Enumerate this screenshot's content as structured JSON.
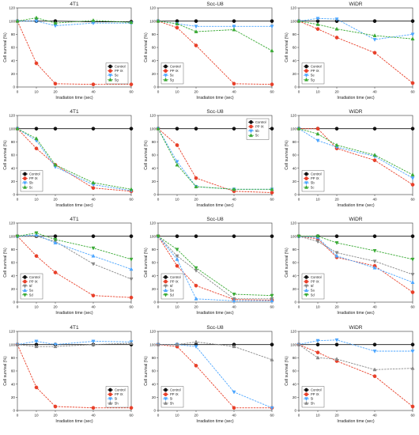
{
  "chart_data": [
    {
      "type": "line",
      "title": "4T1",
      "xlabel": "",
      "ylabel": "Cell survival (%)",
      "x": [
        0,
        10,
        20,
        40,
        60
      ],
      "ylim": [
        0,
        120
      ],
      "xlim": [
        0,
        60
      ],
      "legend_position": "bottom-right",
      "series": [
        {
          "name": "Control",
          "color": "#111111",
          "values": [
            100,
            100,
            100,
            99,
            99
          ]
        },
        {
          "name": "PP IX",
          "color": "#e8402a",
          "values": [
            100,
            36,
            5,
            4,
            4
          ]
        },
        {
          "name": "5e",
          "color": "#4da6ff",
          "values": [
            100,
            100,
            93,
            97,
            97
          ]
        },
        {
          "name": "5g",
          "color": "#3aaa35",
          "values": [
            100,
            105,
            97,
            101,
            98
          ]
        }
      ]
    },
    {
      "type": "line",
      "title": "Scc-U8",
      "xlabel": "",
      "ylabel": "Cell survival (%)",
      "x": [
        0,
        10,
        20,
        40,
        60
      ],
      "ylim": [
        0,
        120
      ],
      "xlim": [
        0,
        60
      ],
      "legend_position": "bottom-left",
      "series": [
        {
          "name": "Control",
          "color": "#111111",
          "values": [
            100,
            100,
            100,
            100,
            100
          ]
        },
        {
          "name": "PP IX",
          "color": "#e8402a",
          "values": [
            100,
            90,
            63,
            5,
            4
          ]
        },
        {
          "name": "5e",
          "color": "#4da6ff",
          "values": [
            100,
            96,
            92,
            92,
            92
          ]
        },
        {
          "name": "5g",
          "color": "#3aaa35",
          "values": [
            100,
            96,
            84,
            87,
            55
          ]
        }
      ]
    },
    {
      "type": "line",
      "title": "WiDR",
      "xlabel": "",
      "ylabel": "Cell survival (%)",
      "x": [
        0,
        10,
        20,
        40,
        60
      ],
      "ylim": [
        0,
        120
      ],
      "xlim": [
        0,
        60
      ],
      "legend_position": "bottom-left",
      "series": [
        {
          "name": "Control",
          "color": "#111111",
          "values": [
            100,
            100,
            100,
            100,
            100
          ]
        },
        {
          "name": "PP IX",
          "color": "#e8402a",
          "values": [
            100,
            88,
            75,
            52,
            6
          ]
        },
        {
          "name": "5e",
          "color": "#4da6ff",
          "values": [
            100,
            104,
            103,
            72,
            80
          ]
        },
        {
          "name": "5g",
          "color": "#3aaa35",
          "values": [
            100,
            95,
            88,
            78,
            73
          ]
        }
      ]
    },
    {
      "type": "line",
      "title": "4T1",
      "xlabel": "",
      "ylabel": "Cell survival (%)",
      "x": [
        0,
        10,
        20,
        40,
        60
      ],
      "ylim": [
        0,
        120
      ],
      "xlim": [
        0,
        60
      ],
      "legend_position": "bottom-left",
      "series": [
        {
          "name": "Control",
          "color": "#111111",
          "values": [
            100,
            100,
            100,
            100,
            100
          ]
        },
        {
          "name": "PP IX",
          "color": "#e8402a",
          "values": [
            100,
            70,
            45,
            10,
            5
          ]
        },
        {
          "name": "5b",
          "color": "#4da6ff",
          "values": [
            100,
            82,
            42,
            15,
            6
          ]
        },
        {
          "name": "5c",
          "color": "#3aaa35",
          "values": [
            100,
            85,
            45,
            18,
            8
          ]
        }
      ]
    },
    {
      "type": "line",
      "title": "Scc-U8",
      "xlabel": "",
      "ylabel": "Cell survival (%)",
      "x": [
        0,
        10,
        20,
        40,
        60
      ],
      "ylim": [
        0,
        120
      ],
      "xlim": [
        0,
        60
      ],
      "legend_position": "top-right",
      "series": [
        {
          "name": "Control",
          "color": "#111111",
          "values": [
            100,
            100,
            100,
            100,
            100
          ]
        },
        {
          "name": "PP IX",
          "color": "#e8402a",
          "values": [
            100,
            75,
            25,
            5,
            3
          ]
        },
        {
          "name": "5b",
          "color": "#4da6ff",
          "values": [
            100,
            50,
            12,
            8,
            8
          ]
        },
        {
          "name": "5c",
          "color": "#3aaa35",
          "values": [
            100,
            45,
            12,
            8,
            8
          ]
        }
      ]
    },
    {
      "type": "line",
      "title": "WiDR",
      "xlabel": "",
      "ylabel": "Cell survival (%)",
      "x": [
        0,
        10,
        20,
        40,
        60
      ],
      "ylim": [
        0,
        120
      ],
      "xlim": [
        0,
        60
      ],
      "legend_position": "bottom-left",
      "series": [
        {
          "name": "Control",
          "color": "#111111",
          "values": [
            100,
            100,
            100,
            100,
            100
          ]
        },
        {
          "name": "PP IX",
          "color": "#e8402a",
          "values": [
            100,
            100,
            70,
            52,
            15
          ]
        },
        {
          "name": "5b",
          "color": "#4da6ff",
          "values": [
            100,
            82,
            72,
            58,
            25
          ]
        },
        {
          "name": "5c",
          "color": "#3aaa35",
          "values": [
            100,
            92,
            75,
            60,
            30
          ]
        }
      ]
    },
    {
      "type": "line",
      "title": "4T1",
      "xlabel": "",
      "ylabel": "Cell survival (%)",
      "x": [
        0,
        10,
        20,
        40,
        60
      ],
      "ylim": [
        0,
        120
      ],
      "xlim": [
        0,
        60
      ],
      "legend_position": "bottom-left",
      "series": [
        {
          "name": "Control",
          "color": "#111111",
          "values": [
            100,
            100,
            100,
            100,
            100
          ]
        },
        {
          "name": "PP IX",
          "color": "#e8402a",
          "values": [
            100,
            70,
            45,
            10,
            7
          ]
        },
        {
          "name": "5f",
          "color": "#888888",
          "values": [
            100,
            100,
            92,
            58,
            35
          ]
        },
        {
          "name": "5a",
          "color": "#4da6ff",
          "values": [
            100,
            102,
            90,
            70,
            50
          ]
        },
        {
          "name": "5d",
          "color": "#3aaa35",
          "values": [
            100,
            105,
            95,
            82,
            65
          ]
        }
      ]
    },
    {
      "type": "line",
      "title": "Scc-U8",
      "xlabel": "",
      "ylabel": "Cell survival (%)",
      "x": [
        0,
        10,
        20,
        40,
        60
      ],
      "ylim": [
        0,
        120
      ],
      "xlim": [
        0,
        60
      ],
      "legend_position": "bottom-left",
      "series": [
        {
          "name": "Control",
          "color": "#111111",
          "values": [
            100,
            100,
            100,
            100,
            100
          ]
        },
        {
          "name": "PP IX",
          "color": "#e8402a",
          "values": [
            100,
            55,
            25,
            4,
            3
          ]
        },
        {
          "name": "5f",
          "color": "#888888",
          "values": [
            100,
            70,
            48,
            5,
            5
          ]
        },
        {
          "name": "5a",
          "color": "#4da6ff",
          "values": [
            100,
            65,
            5,
            2,
            2
          ]
        },
        {
          "name": "5d",
          "color": "#3aaa35",
          "values": [
            100,
            80,
            52,
            12,
            10
          ]
        }
      ]
    },
    {
      "type": "line",
      "title": "WiDR",
      "xlabel": "",
      "ylabel": "Cell survival (%)",
      "x": [
        0,
        10,
        20,
        40,
        60
      ],
      "ylim": [
        0,
        120
      ],
      "xlim": [
        0,
        60
      ],
      "legend_position": "bottom-left",
      "series": [
        {
          "name": "Control",
          "color": "#111111",
          "values": [
            100,
            100,
            100,
            100,
            100
          ]
        },
        {
          "name": "PP IX",
          "color": "#e8402a",
          "values": [
            100,
            96,
            68,
            55,
            15
          ]
        },
        {
          "name": "5f",
          "color": "#888888",
          "values": [
            100,
            92,
            75,
            62,
            42
          ]
        },
        {
          "name": "5a",
          "color": "#4da6ff",
          "values": [
            100,
            98,
            70,
            52,
            30
          ]
        },
        {
          "name": "5d",
          "color": "#3aaa35",
          "values": [
            100,
            100,
            90,
            78,
            65
          ]
        }
      ]
    },
    {
      "type": "line",
      "title": "4T1",
      "xlabel": "",
      "ylabel": "Cell survival (%)",
      "x": [
        0,
        10,
        20,
        40,
        60
      ],
      "ylim": [
        0,
        120
      ],
      "xlim": [
        0,
        60
      ],
      "legend_position": "bottom-right",
      "series": [
        {
          "name": "Control",
          "color": "#111111",
          "values": [
            100,
            100,
            100,
            100,
            100
          ]
        },
        {
          "name": "PP IX",
          "color": "#e8402a",
          "values": [
            100,
            35,
            6,
            4,
            4
          ]
        },
        {
          "name": "5i",
          "color": "#4da6ff",
          "values": [
            100,
            105,
            100,
            105,
            104
          ]
        },
        {
          "name": "5h",
          "color": "#888888",
          "values": [
            100,
            97,
            97,
            100,
            102
          ]
        }
      ]
    },
    {
      "type": "line",
      "title": "Scc-U8",
      "xlabel": "",
      "ylabel": "Cell survival (%)",
      "x": [
        0,
        10,
        20,
        40,
        60
      ],
      "ylim": [
        0,
        120
      ],
      "xlim": [
        0,
        60
      ],
      "legend_position": "bottom-left",
      "series": [
        {
          "name": "Control",
          "color": "#111111",
          "values": [
            100,
            100,
            100,
            100,
            100
          ]
        },
        {
          "name": "PP IX",
          "color": "#e8402a",
          "values": [
            100,
            97,
            68,
            4,
            4
          ]
        },
        {
          "name": "5i",
          "color": "#4da6ff",
          "values": [
            100,
            100,
            97,
            28,
            4
          ]
        },
        {
          "name": "5h",
          "color": "#888888",
          "values": [
            100,
            100,
            104,
            97,
            77
          ]
        }
      ]
    },
    {
      "type": "line",
      "title": "WiDR",
      "xlabel": "",
      "ylabel": "Cell survival (%)",
      "x": [
        0,
        10,
        20,
        40,
        60
      ],
      "ylim": [
        0,
        120
      ],
      "xlim": [
        0,
        60
      ],
      "legend_position": "bottom-left",
      "series": [
        {
          "name": "Control",
          "color": "#111111",
          "values": [
            100,
            100,
            100,
            100,
            100
          ]
        },
        {
          "name": "PP IX",
          "color": "#e8402a",
          "values": [
            100,
            88,
            75,
            52,
            6
          ]
        },
        {
          "name": "5i",
          "color": "#4da6ff",
          "values": [
            100,
            106,
            107,
            90,
            90
          ]
        },
        {
          "name": "5h",
          "color": "#888888",
          "values": [
            100,
            80,
            78,
            62,
            64
          ]
        }
      ]
    }
  ],
  "axis_text": {
    "xlabel": "Irradiation time (sec)",
    "xticks": [
      "0",
      "10",
      "20",
      "40",
      "60"
    ],
    "yticks": [
      "0",
      "20",
      "40",
      "60",
      "80",
      "100",
      "120"
    ]
  }
}
